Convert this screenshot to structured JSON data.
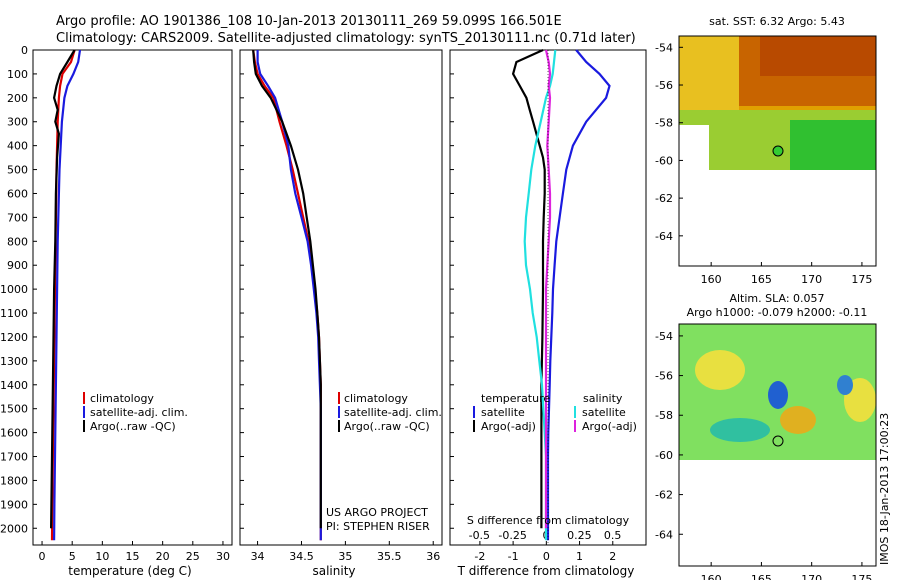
{
  "header": {
    "line1": "Argo profile: AO 1901386_108 10-Jan-2013 20130111_269 59.099S 166.501E",
    "line2": "Climatology: CARS2009. Satellite-adjusted climatology: synTS_20130111.nc (0.71d later)"
  },
  "colors": {
    "climatology": "#dd0000",
    "satellite": "#1a1adf",
    "argo": "#000000",
    "satellite_salinity": "#20e0e0",
    "argo_salinity": "#dd22dd"
  },
  "panels": {
    "temperature": {
      "xlabel": "temperature (deg C)",
      "xticks": [
        "0",
        "5",
        "10",
        "15",
        "20",
        "25",
        "30"
      ],
      "legend": [
        "climatology",
        "satellite-adj. clim.",
        "Argo(..raw -QC)"
      ]
    },
    "salinity": {
      "xlabel": "salinity",
      "xticks": [
        "34",
        "34.5",
        "35",
        "35.5",
        "36"
      ],
      "legend": [
        "climatology",
        "satellite-adj. clim.",
        "Argo(..raw -QC)"
      ],
      "credit1": "US ARGO PROJECT",
      "credit2": "PI: STEPHEN RISER"
    },
    "difference": {
      "xlabel": "T difference from climatology",
      "top_label": "S difference from climatology",
      "top_ticks": [
        "-0.5",
        "-0.25",
        "0",
        "0.25",
        "0.5"
      ],
      "xticks": [
        "-2",
        "-1",
        "0",
        "1",
        "2"
      ],
      "legend_temp_title": "temperature",
      "legend_sal_title": "salinity",
      "legend_temp": [
        "satellite",
        "Argo(-adj)"
      ],
      "legend_sal": [
        "satellite",
        "Argo(-adj)"
      ]
    },
    "sst_map": {
      "title": "sat. SST: 6.32  Argo: 5.43",
      "yticks": [
        "-54",
        "-56",
        "-58",
        "-60",
        "-62",
        "-64"
      ],
      "xticks": [
        "160",
        "165",
        "170",
        "175"
      ]
    },
    "sla_map": {
      "title1": "Altim. SLA: 0.057",
      "title2": "Argo h1000: -0.079 h2000: -0.11",
      "yticks": [
        "-54",
        "-56",
        "-58",
        "-60",
        "-62",
        "-64"
      ],
      "xticks": [
        "160",
        "165",
        "170",
        "175"
      ],
      "stamp": "IMOS 18-Jan-2013 17:00:23"
    }
  },
  "depth_ticks": [
    "0",
    "100",
    "200",
    "300",
    "400",
    "500",
    "600",
    "700",
    "800",
    "900",
    "1000",
    "1100",
    "1200",
    "1300",
    "1400",
    "1500",
    "1600",
    "1700",
    "1800",
    "1900",
    "2000"
  ],
  "chart_data": [
    {
      "type": "line",
      "xlabel": "temperature (deg C)",
      "ylabel": "",
      "xlim": [
        -1.5,
        31.5
      ],
      "ylim": [
        2070,
        0
      ],
      "series": [
        {
          "name": "climatology",
          "x": [
            5.4,
            4.8,
            3.4,
            3.0,
            2.8,
            2.6,
            2.5,
            2.4,
            2.35,
            2.3,
            2.25,
            2.2,
            2.15,
            2.1,
            2.05,
            2.0,
            1.95,
            1.9,
            1.85,
            1.8,
            1.75,
            1.7,
            1.65
          ],
          "y": [
            0,
            50,
            100,
            150,
            200,
            300,
            400,
            500,
            600,
            700,
            800,
            900,
            1000,
            1100,
            1200,
            1300,
            1400,
            1500,
            1600,
            1700,
            1800,
            1900,
            2050
          ]
        },
        {
          "name": "satellite-adj. clim.",
          "x": [
            6.3,
            6.0,
            5.2,
            4.2,
            3.7,
            3.3,
            3.1,
            2.9,
            2.8,
            2.7,
            2.6,
            2.55,
            2.5,
            2.45,
            2.4,
            2.35,
            2.3,
            2.25,
            2.2,
            2.15,
            2.1,
            2.05,
            2.0
          ],
          "y": [
            0,
            50,
            100,
            150,
            200,
            300,
            400,
            500,
            600,
            700,
            800,
            900,
            1000,
            1100,
            1200,
            1300,
            1400,
            1500,
            1600,
            1700,
            1800,
            1900,
            2050
          ]
        },
        {
          "name": "Argo(..raw -QC)",
          "x": [
            5.4,
            4.2,
            3.0,
            2.4,
            2.0,
            2.6,
            2.2,
            2.8,
            2.5,
            2.3,
            2.2,
            2.1,
            2.0,
            1.95,
            1.9,
            1.85,
            1.8,
            1.75,
            1.7,
            1.65,
            1.6,
            1.55,
            1.5
          ],
          "y": [
            0,
            50,
            100,
            150,
            200,
            250,
            300,
            350,
            450,
            600,
            800,
            900,
            1000,
            1100,
            1200,
            1300,
            1400,
            1500,
            1600,
            1700,
            1800,
            1900,
            2000
          ]
        }
      ]
    },
    {
      "type": "line",
      "xlabel": "salinity",
      "ylabel": "",
      "xlim": [
        33.8,
        36.1
      ],
      "ylim": [
        2070,
        0
      ],
      "series": [
        {
          "name": "climatology",
          "x": [
            33.95,
            33.97,
            34.0,
            34.08,
            34.18,
            34.25,
            34.33,
            34.4,
            34.46,
            34.52,
            34.58,
            34.62,
            34.65,
            34.68,
            34.7,
            34.71,
            34.72,
            34.72,
            34.72,
            34.72,
            34.72,
            34.72,
            34.72
          ],
          "y": [
            0,
            50,
            100,
            150,
            200,
            300,
            400,
            500,
            600,
            700,
            800,
            900,
            1000,
            1100,
            1200,
            1300,
            1400,
            1500,
            1600,
            1700,
            1800,
            1900,
            2050
          ]
        },
        {
          "name": "satellite-adj. clim.",
          "x": [
            34.0,
            34.0,
            34.03,
            34.12,
            34.2,
            34.28,
            34.35,
            34.38,
            34.43,
            34.5,
            34.57,
            34.61,
            34.64,
            34.67,
            34.69,
            34.7,
            34.71,
            34.72,
            34.72,
            34.72,
            34.72,
            34.72,
            34.72
          ],
          "y": [
            0,
            50,
            100,
            150,
            200,
            300,
            400,
            500,
            600,
            700,
            800,
            900,
            1000,
            1100,
            1200,
            1300,
            1400,
            1500,
            1600,
            1700,
            1800,
            1900,
            2050
          ]
        },
        {
          "name": "Argo(..raw -QC)",
          "x": [
            33.95,
            33.96,
            33.98,
            34.05,
            34.15,
            34.28,
            34.38,
            34.46,
            34.52,
            34.56,
            34.6,
            34.63,
            34.66,
            34.68,
            34.7,
            34.71,
            34.72,
            34.72,
            34.72,
            34.72,
            34.72,
            34.72,
            34.72
          ],
          "y": [
            0,
            50,
            100,
            150,
            200,
            300,
            400,
            500,
            600,
            700,
            800,
            900,
            1000,
            1100,
            1200,
            1300,
            1400,
            1500,
            1600,
            1700,
            1800,
            1900,
            2000
          ]
        }
      ]
    },
    {
      "type": "line",
      "xlabel": "T difference from climatology",
      "ylabel": "",
      "xlim": [
        -2.9,
        3.0
      ],
      "ylim": [
        2070,
        0
      ],
      "series": [
        {
          "name": "temperature satellite",
          "x": [
            0.9,
            1.2,
            1.6,
            1.9,
            1.8,
            1.2,
            0.8,
            0.6,
            0.5,
            0.4,
            0.3,
            0.25,
            0.2,
            0.18,
            0.15,
            0.12,
            0.1,
            0.08,
            0.06,
            0.05,
            0.05,
            0.05,
            0.05
          ],
          "y": [
            0,
            50,
            100,
            150,
            200,
            300,
            400,
            500,
            600,
            700,
            800,
            900,
            1000,
            1100,
            1200,
            1300,
            1400,
            1500,
            1600,
            1700,
            1800,
            1900,
            2050
          ]
        },
        {
          "name": "temperature Argo(-adj)",
          "x": [
            -0.1,
            -0.9,
            -1.0,
            -0.8,
            -0.6,
            -0.5,
            -0.4,
            -0.3,
            -0.2,
            -0.1,
            -0.05,
            -0.05,
            -0.08,
            -0.1,
            -0.1,
            -0.12,
            -0.15,
            -0.15,
            -0.15,
            -0.15,
            -0.15,
            -0.15,
            -0.15
          ],
          "y": [
            0,
            50,
            100,
            150,
            200,
            250,
            300,
            350,
            400,
            450,
            500,
            600,
            700,
            800,
            1000,
            1200,
            1400,
            1600,
            1700,
            1800,
            1900,
            1950,
            2000
          ]
        }
      ]
    },
    {
      "type": "line",
      "xlabel": "S difference from climatology",
      "ylabel": "",
      "xlim": [
        -0.72,
        0.75
      ],
      "ylim": [
        2070,
        0
      ],
      "series": [
        {
          "name": "salinity satellite",
          "x": [
            0.07,
            0.06,
            0.05,
            0.03,
            0.0,
            -0.04,
            -0.08,
            -0.11,
            -0.13,
            -0.15,
            -0.16,
            -0.15,
            -0.12,
            -0.1,
            -0.07,
            -0.05,
            -0.03,
            -0.02,
            -0.01,
            0.0,
            0.0,
            0.0,
            0.0
          ],
          "y": [
            0,
            50,
            100,
            150,
            200,
            300,
            400,
            500,
            600,
            700,
            800,
            900,
            1000,
            1100,
            1200,
            1300,
            1400,
            1500,
            1600,
            1700,
            1800,
            1900,
            2050
          ]
        },
        {
          "name": "salinity Argo(-adj)",
          "x": [
            0.0,
            0.02,
            0.03,
            0.02,
            0.03,
            0.02,
            0.01,
            0.02,
            0.03,
            0.03,
            0.02,
            0.01,
            0.0,
            0.0,
            0.0,
            0.0,
            0.0,
            0.0,
            0.0,
            0.0,
            0.0,
            0.0,
            0.0
          ],
          "y": [
            0,
            50,
            100,
            150,
            200,
            300,
            400,
            500,
            600,
            700,
            800,
            900,
            1000,
            1100,
            1200,
            1300,
            1400,
            1500,
            1600,
            1700,
            1800,
            1900,
            2000
          ]
        }
      ]
    }
  ]
}
